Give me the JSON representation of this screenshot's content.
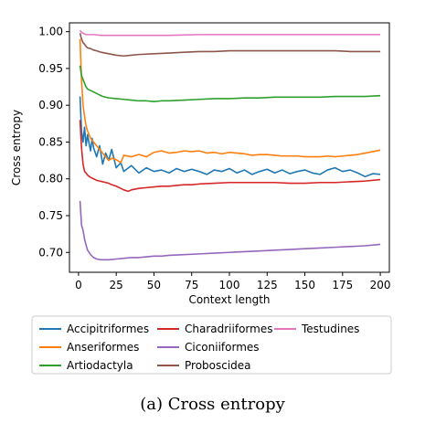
{
  "caption": "(a) Cross entropy",
  "chart_data": {
    "type": "line",
    "xlabel": "Context length",
    "ylabel": "Cross entropy",
    "xlim": [
      -6,
      206
    ],
    "ylim": [
      0.673,
      1.012
    ],
    "xticks": [
      0,
      25,
      50,
      75,
      100,
      125,
      150,
      175,
      200
    ],
    "yticks": [
      0.7,
      0.75,
      0.8,
      0.85,
      0.9,
      0.95,
      1.0
    ],
    "xtick_labels": [
      "0",
      "25",
      "50",
      "75",
      "100",
      "125",
      "150",
      "175",
      "200"
    ],
    "ytick_labels": [
      "0.70",
      "0.75",
      "0.80",
      "0.85",
      "0.90",
      "0.95",
      "1.00"
    ],
    "grid": false,
    "legend_position": "below",
    "series": [
      {
        "name": "Accipitriformes",
        "color": "#1f77b4",
        "x": [
          1,
          2,
          3,
          4,
          5,
          6,
          7,
          8,
          9,
          10,
          12,
          14,
          16,
          18,
          20,
          22,
          25,
          28,
          30,
          35,
          40,
          45,
          50,
          55,
          60,
          65,
          70,
          75,
          80,
          85,
          90,
          95,
          100,
          105,
          110,
          115,
          120,
          125,
          130,
          135,
          140,
          145,
          150,
          155,
          160,
          165,
          170,
          175,
          180,
          185,
          190,
          195,
          200
        ],
        "y": [
          0.912,
          0.865,
          0.85,
          0.87,
          0.845,
          0.86,
          0.848,
          0.838,
          0.855,
          0.842,
          0.83,
          0.845,
          0.82,
          0.835,
          0.825,
          0.84,
          0.815,
          0.822,
          0.81,
          0.818,
          0.808,
          0.815,
          0.81,
          0.812,
          0.808,
          0.814,
          0.81,
          0.813,
          0.81,
          0.806,
          0.812,
          0.81,
          0.814,
          0.808,
          0.812,
          0.806,
          0.81,
          0.813,
          0.808,
          0.812,
          0.807,
          0.81,
          0.812,
          0.808,
          0.806,
          0.812,
          0.815,
          0.81,
          0.812,
          0.808,
          0.803,
          0.807,
          0.806
        ]
      },
      {
        "name": "Anseriformes",
        "color": "#ff7f0e",
        "x": [
          1,
          2,
          3,
          4,
          5,
          6,
          8,
          10,
          12,
          14,
          16,
          18,
          20,
          22,
          25,
          28,
          30,
          35,
          40,
          45,
          50,
          55,
          60,
          65,
          70,
          75,
          80,
          85,
          90,
          95,
          100,
          105,
          110,
          115,
          120,
          125,
          130,
          135,
          140,
          145,
          150,
          155,
          160,
          165,
          170,
          175,
          180,
          185,
          190,
          195,
          200
        ],
        "y": [
          0.99,
          0.935,
          0.9,
          0.885,
          0.872,
          0.865,
          0.855,
          0.85,
          0.845,
          0.84,
          0.835,
          0.83,
          0.825,
          0.828,
          0.826,
          0.822,
          0.832,
          0.83,
          0.833,
          0.83,
          0.836,
          0.838,
          0.835,
          0.836,
          0.838,
          0.837,
          0.838,
          0.835,
          0.836,
          0.834,
          0.836,
          0.835,
          0.834,
          0.832,
          0.833,
          0.833,
          0.832,
          0.831,
          0.831,
          0.831,
          0.83,
          0.83,
          0.83,
          0.831,
          0.83,
          0.831,
          0.832,
          0.833,
          0.835,
          0.837,
          0.839
        ]
      },
      {
        "name": "Artiodactyla",
        "color": "#2ca02c",
        "x": [
          1,
          2,
          3,
          4,
          5,
          6,
          8,
          10,
          12,
          14,
          16,
          18,
          20,
          25,
          30,
          35,
          40,
          45,
          50,
          55,
          60,
          70,
          80,
          90,
          100,
          110,
          120,
          130,
          140,
          150,
          160,
          170,
          180,
          190,
          200
        ],
        "y": [
          0.954,
          0.94,
          0.935,
          0.93,
          0.925,
          0.922,
          0.92,
          0.918,
          0.916,
          0.914,
          0.912,
          0.911,
          0.91,
          0.909,
          0.908,
          0.907,
          0.906,
          0.906,
          0.905,
          0.906,
          0.906,
          0.907,
          0.908,
          0.909,
          0.909,
          0.91,
          0.91,
          0.911,
          0.911,
          0.911,
          0.911,
          0.912,
          0.912,
          0.912,
          0.913
        ]
      },
      {
        "name": "Charadriiformes",
        "color": "#d62728",
        "x": [
          1,
          2,
          3,
          4,
          5,
          6,
          8,
          10,
          12,
          14,
          16,
          18,
          20,
          22,
          25,
          28,
          30,
          33,
          35,
          40,
          45,
          50,
          55,
          60,
          65,
          70,
          75,
          80,
          90,
          100,
          110,
          120,
          130,
          140,
          150,
          160,
          170,
          180,
          190,
          200
        ],
        "y": [
          0.88,
          0.842,
          0.82,
          0.81,
          0.808,
          0.805,
          0.802,
          0.8,
          0.798,
          0.797,
          0.796,
          0.795,
          0.794,
          0.792,
          0.79,
          0.787,
          0.785,
          0.783,
          0.785,
          0.787,
          0.788,
          0.789,
          0.79,
          0.79,
          0.791,
          0.792,
          0.792,
          0.793,
          0.794,
          0.795,
          0.795,
          0.795,
          0.795,
          0.794,
          0.794,
          0.795,
          0.795,
          0.796,
          0.797,
          0.799
        ]
      },
      {
        "name": "Ciconiiformes",
        "color": "#9467bd",
        "x": [
          1,
          2,
          3,
          4,
          5,
          6,
          8,
          10,
          12,
          15,
          20,
          25,
          30,
          35,
          40,
          45,
          50,
          55,
          60,
          70,
          80,
          90,
          100,
          110,
          120,
          130,
          140,
          150,
          160,
          170,
          180,
          190,
          200
        ],
        "y": [
          0.77,
          0.737,
          0.73,
          0.718,
          0.71,
          0.703,
          0.697,
          0.693,
          0.691,
          0.69,
          0.69,
          0.691,
          0.692,
          0.693,
          0.693,
          0.694,
          0.695,
          0.695,
          0.696,
          0.697,
          0.698,
          0.699,
          0.7,
          0.701,
          0.702,
          0.703,
          0.704,
          0.705,
          0.706,
          0.707,
          0.708,
          0.709,
          0.711
        ]
      },
      {
        "name": "Proboscidea",
        "color": "#8c564b",
        "x": [
          1,
          2,
          3,
          4,
          5,
          6,
          8,
          10,
          12,
          15,
          20,
          25,
          30,
          35,
          40,
          50,
          60,
          70,
          80,
          90,
          100,
          110,
          120,
          130,
          140,
          150,
          160,
          170,
          180,
          190,
          200
        ],
        "y": [
          0.998,
          0.99,
          0.985,
          0.983,
          0.98,
          0.978,
          0.977,
          0.975,
          0.974,
          0.972,
          0.97,
          0.968,
          0.967,
          0.968,
          0.969,
          0.97,
          0.971,
          0.972,
          0.973,
          0.973,
          0.974,
          0.974,
          0.974,
          0.974,
          0.974,
          0.974,
          0.974,
          0.974,
          0.973,
          0.973,
          0.973
        ]
      },
      {
        "name": "Testudines",
        "color": "#e377c2",
        "x": [
          1,
          2,
          3,
          4,
          5,
          6,
          8,
          10,
          15,
          20,
          30,
          40,
          50,
          60,
          80,
          100,
          120,
          140,
          160,
          180,
          200
        ],
        "y": [
          1.002,
          0.999,
          0.998,
          0.997,
          0.996,
          0.996,
          0.996,
          0.996,
          0.995,
          0.995,
          0.995,
          0.995,
          0.995,
          0.995,
          0.996,
          0.996,
          0.996,
          0.996,
          0.996,
          0.996,
          0.996
        ]
      }
    ]
  }
}
